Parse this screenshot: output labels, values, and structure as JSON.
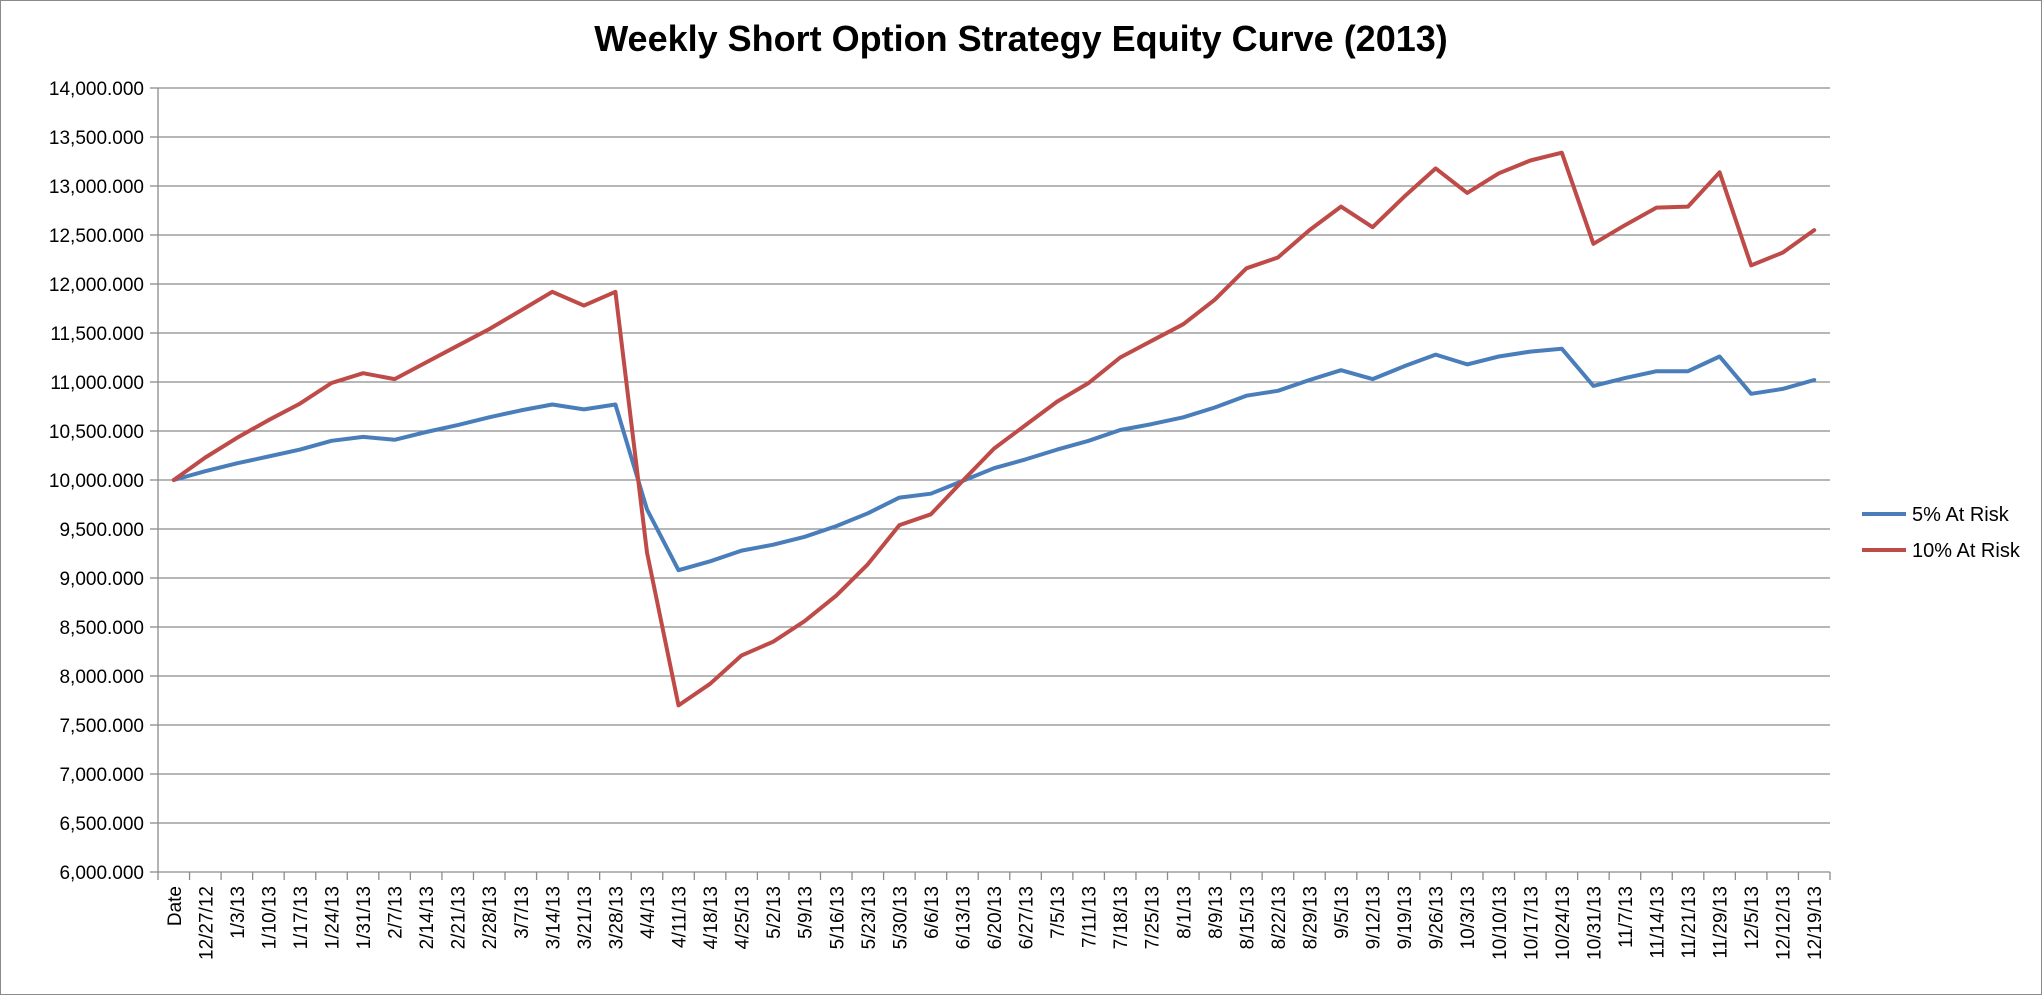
{
  "chart_data": {
    "type": "line",
    "title": "Weekly Short Option Strategy Equity Curve (2013)",
    "xlabel": "",
    "ylabel": "",
    "ylim": [
      6000,
      14000
    ],
    "y_tick_step": 500,
    "y_tick_labels": [
      "6,000.000",
      "6,500.000",
      "7,000.000",
      "7,500.000",
      "8,000.000",
      "8,500.000",
      "9,000.000",
      "9,500.000",
      "10,000.000",
      "10,500.000",
      "11,000.000",
      "11,500.000",
      "12,000.000",
      "12,500.000",
      "13,000.000",
      "13,500.000",
      "14,000.000"
    ],
    "grid": true,
    "legend_position": "right",
    "categories": [
      "Date",
      "12/27/12",
      "1/3/13",
      "1/10/13",
      "1/17/13",
      "1/24/13",
      "1/31/13",
      "2/7/13",
      "2/14/13",
      "2/21/13",
      "2/28/13",
      "3/7/13",
      "3/14/13",
      "3/21/13",
      "3/28/13",
      "4/4/13",
      "4/11/13",
      "4/18/13",
      "4/25/13",
      "5/2/13",
      "5/9/13",
      "5/16/13",
      "5/23/13",
      "5/30/13",
      "6/6/13",
      "6/13/13",
      "6/20/13",
      "6/27/13",
      "7/5/13",
      "7/11/13",
      "7/18/13",
      "7/25/13",
      "8/1/13",
      "8/9/13",
      "8/15/13",
      "8/22/13",
      "8/29/13",
      "9/5/13",
      "9/12/13",
      "9/19/13",
      "9/26/13",
      "10/3/13",
      "10/10/13",
      "10/17/13",
      "10/24/13",
      "10/31/13",
      "11/7/13",
      "11/14/13",
      "11/21/13",
      "11/29/13",
      "12/5/13",
      "12/12/13",
      "12/19/13"
    ],
    "series": [
      {
        "name": "5% At Risk",
        "color": "#4a7ebb",
        "values": [
          10000,
          10090,
          10170,
          10240,
          10310,
          10400,
          10440,
          10410,
          10490,
          10560,
          10640,
          10710,
          10770,
          10720,
          10770,
          9700,
          9080,
          9170,
          9280,
          9340,
          9420,
          9530,
          9660,
          9820,
          9860,
          9990,
          10120,
          10210,
          10310,
          10400,
          10510,
          10570,
          10640,
          10740,
          10860,
          10910,
          11020,
          11120,
          11030,
          11160,
          11280,
          11180,
          11260,
          11310,
          11340,
          10960,
          11040,
          11110,
          11110,
          11260,
          10880,
          10930,
          11020
        ]
      },
      {
        "name": "10% At Risk",
        "color": "#be4b48",
        "values": [
          10000,
          10230,
          10430,
          10610,
          10780,
          10990,
          11090,
          11030,
          11200,
          11370,
          11540,
          11730,
          11920,
          11780,
          11920,
          9260,
          7700,
          7920,
          8210,
          8350,
          8560,
          8820,
          9140,
          9540,
          9650,
          9990,
          10320,
          10560,
          10800,
          10990,
          11250,
          11420,
          11590,
          11840,
          12160,
          12270,
          12550,
          12790,
          12580,
          12890,
          13180,
          12930,
          13130,
          13260,
          13340,
          12410,
          12600,
          12780,
          12790,
          13140,
          12190,
          12320,
          12550
        ]
      }
    ]
  }
}
